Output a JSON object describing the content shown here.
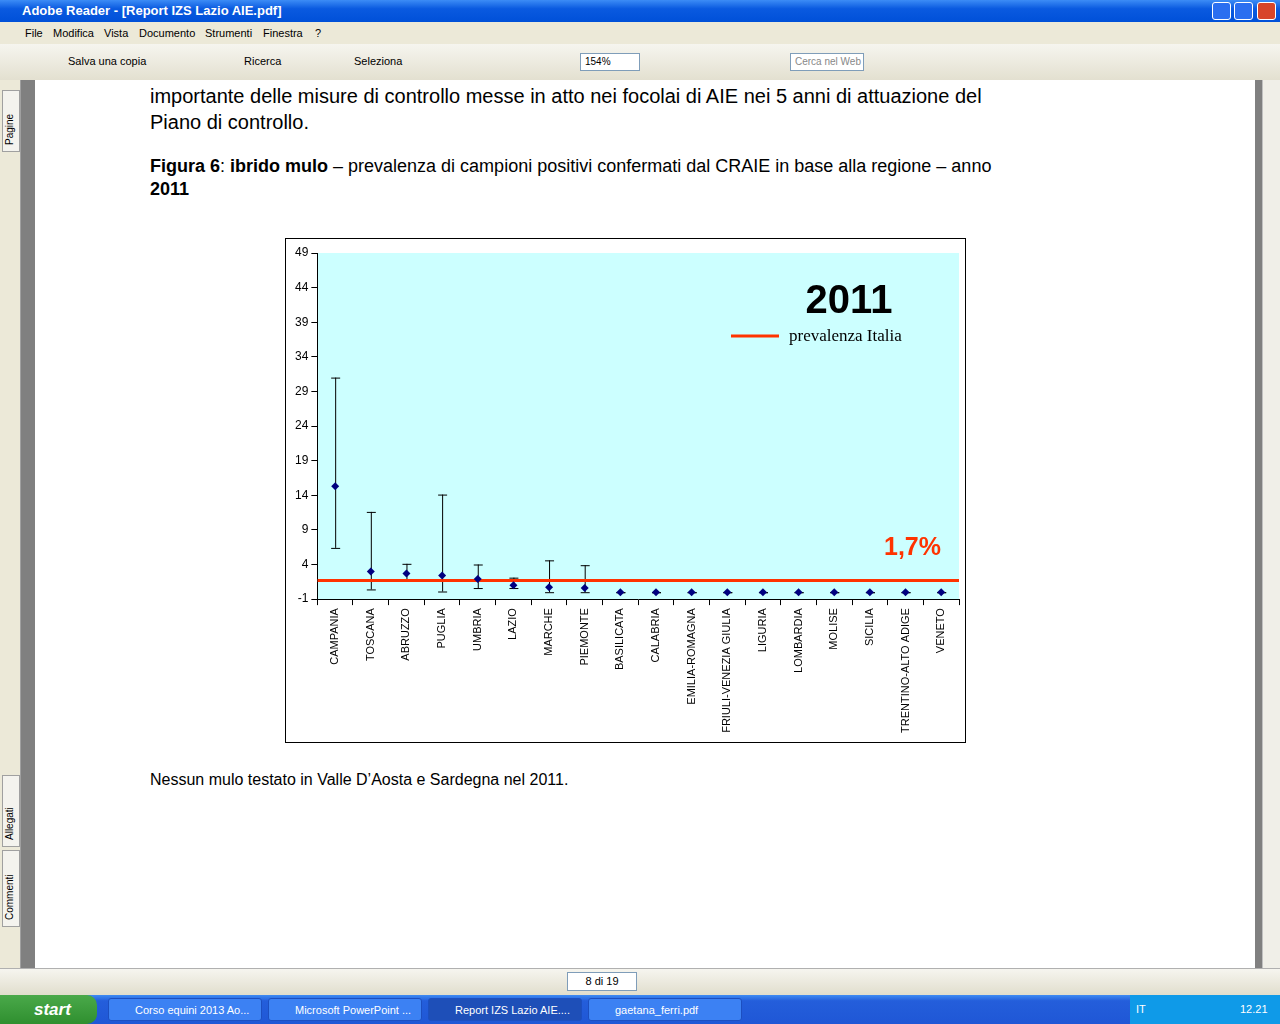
{
  "window": {
    "title": "Adobe Reader - [Report IZS Lazio AIE.pdf]",
    "menu": [
      "File",
      "Modifica",
      "Vista",
      "Documento",
      "Strumenti",
      "Finestra",
      "?"
    ],
    "toolbar": [
      "Salva una copia",
      "Ricerca",
      "Seleziona",
      "154%",
      "Cerca nel Web"
    ],
    "side_tabs": [
      "Pagine",
      "Allegati",
      "Commenti"
    ],
    "page_nav": "8 di 19"
  },
  "document": {
    "paragraph": [
      "importante delle misure di controllo messe in atto nei focolai di AIE nei 5 anni di attuazione del",
      "Piano di controllo."
    ],
    "caption": [
      [
        {
          "text": "Figura 6",
          "bold": true
        },
        {
          "text": ": ",
          "bold": false
        },
        {
          "text": "ibrido mulo",
          "bold": true
        },
        {
          "text": " – prevalenza di campioni positivi confermati dal CRAIE in base alla regione – anno",
          "bold": false
        }
      ],
      [
        {
          "text": "2011",
          "bold": true
        }
      ]
    ],
    "footnote": "Nessun mulo testato in Valle D’Aosta e Sardegna nel 2011."
  },
  "taskbar": {
    "start": "start",
    "items": [
      "Corso equini 2013 Ao...",
      "Microsoft PowerPoint ...",
      "Report IZS Lazio AIE....",
      "gaetana_ferri.pdf"
    ],
    "active": "Report IZS Lazio AIE....",
    "language": "IT",
    "clock": "12.21"
  },
  "chart_data": {
    "type": "scatter",
    "annotations": [
      "2011"
    ],
    "categories": [
      "CAMPANIA",
      "TOSCANA",
      "ABRUZZO",
      "PUGLIA",
      "UMBRIA",
      "LAZIO",
      "MARCHE",
      "PIEMONTE",
      "BASILICATA",
      "CALABRIA",
      "EMILIA-ROMAGNA",
      "FRIULI-VENEZIA GIULIA",
      "LIGURIA",
      "LOMBARDIA",
      "MOLISE",
      "SICILIA",
      "TRENTINO-ALTO ADIGE",
      "VENETO"
    ],
    "values": [
      15.3,
      3.0,
      2.7,
      2.4,
      1.9,
      1.0,
      0.7,
      0.6,
      0,
      0,
      0,
      0,
      0,
      0,
      0,
      0,
      0,
      0
    ],
    "lower": [
      6.4,
      0.4,
      1.9,
      0.1,
      0.6,
      0.6,
      0,
      0,
      0,
      0,
      0,
      0,
      0,
      0,
      0,
      0,
      0,
      0
    ],
    "upper": [
      31,
      11.6,
      4.1,
      14.1,
      4.0,
      2.1,
      4.6,
      3.9,
      0,
      0,
      0,
      0,
      0,
      0,
      0,
      0,
      0,
      0
    ],
    "color": "#000080",
    "marker": "diamond",
    "reference_line": {
      "name": "prevalenza Italia",
      "value": 1.7,
      "label": "1,7%",
      "color": "#ff3300"
    },
    "legend": "top-right",
    "ylim": [
      -1,
      49
    ],
    "yticks": [
      -1,
      4,
      9,
      14,
      19,
      24,
      29,
      34,
      39,
      44,
      49
    ],
    "grid": false
  }
}
